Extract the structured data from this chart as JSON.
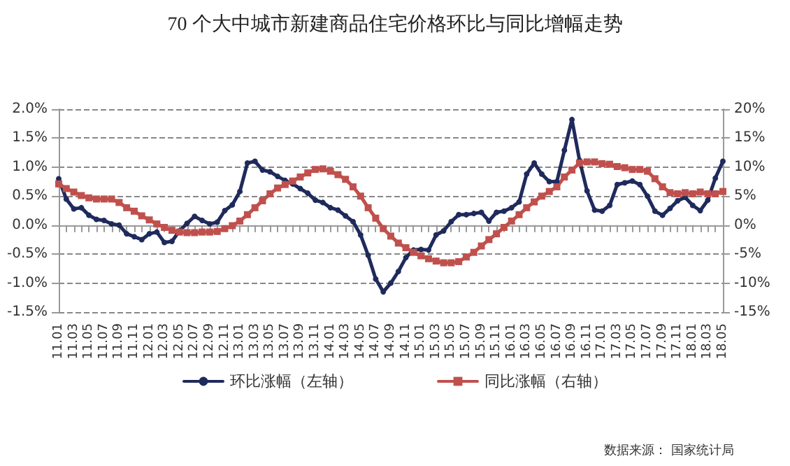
{
  "chart_data": {
    "type": "line",
    "title": "70 个大中城市新建商品住宅价格环比与同比增幅走势",
    "annotations": [
      "数据来源： 国家统计局"
    ],
    "categories": [
      "11.01",
      null,
      "11.03",
      null,
      "11.05",
      null,
      "11.07",
      null,
      "11.09",
      null,
      "11.11",
      null,
      "12.01",
      null,
      "12.03",
      null,
      "12.05",
      null,
      "12.07",
      null,
      "12.09",
      null,
      "12.11",
      null,
      "13.01",
      null,
      "13.03",
      null,
      "13.05",
      null,
      "13.07",
      null,
      "13.09",
      null,
      "13.11",
      null,
      "14.01",
      null,
      "14.03",
      null,
      "14.05",
      null,
      "14.07",
      null,
      "14.09",
      null,
      "14.11",
      null,
      "15.01",
      null,
      "15.03",
      null,
      "15.05",
      null,
      "15.07",
      null,
      "15.09",
      null,
      "15.11",
      null,
      "16.01",
      null,
      "16.03",
      null,
      "16.05",
      null,
      "16.07",
      null,
      "16.09",
      null,
      "16.11",
      null,
      "17.01",
      null,
      "17.03",
      null,
      "17.05",
      null,
      "17.07",
      null,
      "17.09",
      null,
      "17.11",
      null,
      "18.01",
      null,
      "18.03",
      null,
      "18.05"
    ],
    "series": [
      {
        "name": "环比涨幅（左轴）",
        "color": "#1f2a5c",
        "marker": "circle",
        "values": [
          0.8,
          0.45,
          0.28,
          0.3,
          0.17,
          0.1,
          0.08,
          0.02,
          0.0,
          -0.15,
          -0.2,
          -0.25,
          -0.15,
          -0.12,
          -0.3,
          -0.28,
          -0.1,
          0.03,
          0.15,
          0.08,
          0.02,
          0.05,
          0.25,
          0.35,
          0.58,
          1.07,
          1.1,
          0.95,
          0.92,
          0.84,
          0.77,
          0.71,
          0.63,
          0.55,
          0.43,
          0.39,
          0.3,
          0.26,
          0.16,
          0.06,
          -0.17,
          -0.52,
          -0.93,
          -1.15,
          -1.0,
          -0.8,
          -0.56,
          -0.43,
          -0.42,
          -0.43,
          -0.17,
          -0.1,
          0.06,
          0.18,
          0.18,
          0.2,
          0.22,
          0.07,
          0.22,
          0.24,
          0.3,
          0.4,
          0.88,
          1.07,
          0.88,
          0.75,
          0.75,
          1.29,
          1.82,
          1.12,
          0.59,
          0.26,
          0.24,
          0.34,
          0.7,
          0.73,
          0.76,
          0.7,
          0.5,
          0.24,
          0.17,
          0.29,
          0.42,
          0.48,
          0.34,
          0.25,
          0.43,
          0.81,
          1.1
        ]
      },
      {
        "name": "同比涨幅（右轴）",
        "color": "#c0504d",
        "marker": "square",
        "axis": "y2",
        "values": [
          7.1,
          6.3,
          5.7,
          5.1,
          4.7,
          4.5,
          4.5,
          4.5,
          3.9,
          3.0,
          2.4,
          1.6,
          0.9,
          0.2,
          -0.4,
          -0.9,
          -1.2,
          -1.3,
          -1.3,
          -1.2,
          -1.2,
          -1.1,
          -0.6,
          -0.1,
          0.7,
          1.8,
          3.0,
          4.2,
          5.4,
          6.4,
          7.0,
          7.6,
          8.3,
          9.0,
          9.6,
          9.7,
          9.3,
          8.7,
          7.9,
          6.6,
          5.0,
          3.0,
          1.2,
          -0.6,
          -1.9,
          -3.1,
          -3.9,
          -4.7,
          -5.3,
          -5.8,
          -6.2,
          -6.5,
          -6.5,
          -6.3,
          -5.5,
          -4.7,
          -3.6,
          -2.5,
          -1.5,
          -0.4,
          0.7,
          1.8,
          3.0,
          4.0,
          5.0,
          5.8,
          6.6,
          8.3,
          9.5,
          10.7,
          10.9,
          10.9,
          10.6,
          10.5,
          10.1,
          9.9,
          9.6,
          9.6,
          9.3,
          8.0,
          6.6,
          5.6,
          5.4,
          5.6,
          5.4,
          5.7,
          5.4,
          5.4,
          5.8
        ]
      }
    ],
    "ylim": [
      -1.5,
      2.0
    ],
    "yticks": [
      {
        "value": -1.5,
        "label": "-1.5%"
      },
      {
        "value": -1.0,
        "label": "-1.0%"
      },
      {
        "value": -0.5,
        "label": "-0.5%"
      },
      {
        "value": 0,
        "label": "0.0%"
      },
      {
        "value": 0.5,
        "label": "0.5%"
      },
      {
        "value": 1.0,
        "label": "1.0%"
      },
      {
        "value": 1.5,
        "label": "1.5%"
      },
      {
        "value": 2.0,
        "label": "2.0%"
      }
    ],
    "y2lim": [
      -15,
      20
    ],
    "y2ticks": [
      {
        "value": -15,
        "label": "-15%"
      },
      {
        "value": -10,
        "label": "-10%"
      },
      {
        "value": -5,
        "label": "-5%"
      },
      {
        "value": 0,
        "label": "0%"
      },
      {
        "value": 5,
        "label": "5%"
      },
      {
        "value": 10,
        "label": "10%"
      },
      {
        "value": 15,
        "label": "15%"
      },
      {
        "value": 20,
        "label": "20%"
      }
    ],
    "grid": "y",
    "legend": "bottom",
    "line_style": "solid"
  }
}
